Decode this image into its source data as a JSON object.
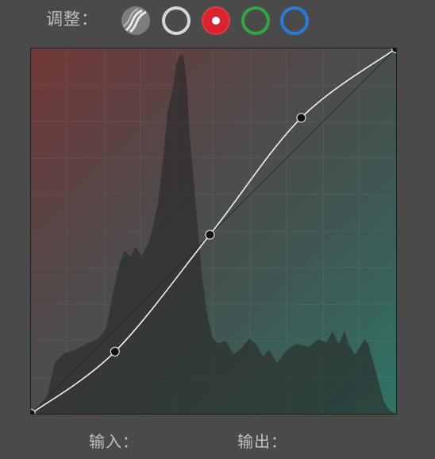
{
  "toolbar": {
    "adjust_label": "调整："
  },
  "channels": [
    {
      "name": "luminance",
      "icon": "luminance-curves-icon",
      "color": "#8a8a8a",
      "selected": false
    },
    {
      "name": "rgb",
      "icon": "white-ring-icon",
      "color": "#d6d6d6",
      "selected": false
    },
    {
      "name": "red",
      "icon": "red-ring-icon",
      "color": "#d9242f",
      "selected": true
    },
    {
      "name": "green",
      "icon": "green-ring-icon",
      "color": "#2fa842",
      "selected": false
    },
    {
      "name": "blue",
      "icon": "blue-ring-icon",
      "color": "#2a7cd6",
      "selected": false
    }
  ],
  "curve": {
    "control_points": [
      [
        0,
        0
      ],
      [
        0.23,
        0.17
      ],
      [
        0.49,
        0.49
      ],
      [
        0.74,
        0.81
      ],
      [
        1,
        1
      ]
    ]
  },
  "footer": {
    "input_label": "输入：",
    "output_label": "输出："
  }
}
